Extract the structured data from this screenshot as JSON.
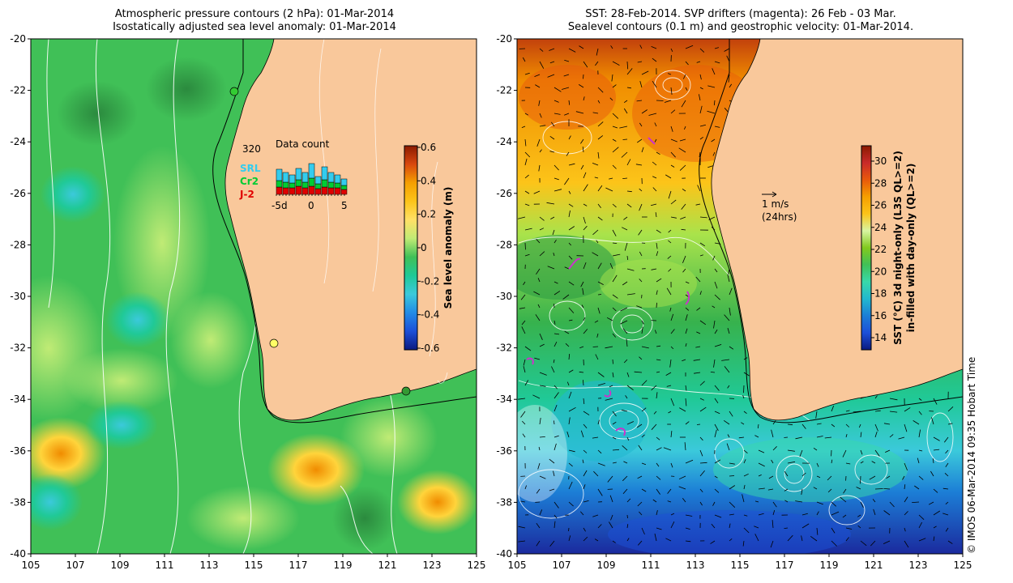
{
  "left_panel": {
    "title_line1": "Atmospheric pressure contours (2 hPa): 01-Mar-2014",
    "title_line2": "Isostatically adjusted sea level anomaly: 01-Mar-2014",
    "colorbar": {
      "label": "Sea level anomaly (m)",
      "ticks": [
        "0.6",
        "0.4",
        "0.2",
        "0",
        "-0.2",
        "-0.4",
        "-0.6"
      ],
      "colors": [
        "#8b1a00",
        "#d9480f",
        "#f59f00",
        "#fcc419",
        "#ffe066",
        "#c0eb75",
        "#40c057",
        "#20c997",
        "#3bc9db",
        "#228be6",
        "#1c4fd8",
        "#0b1a80"
      ]
    },
    "inset": {
      "title": "Data count",
      "max_label": "320",
      "x_ticks": [
        "-5d",
        "0",
        "5"
      ],
      "legend": [
        {
          "label": "SRL",
          "color": "#33ccee"
        },
        {
          "label": "Cr2",
          "color": "#00cc33"
        },
        {
          "label": "J-2",
          "color": "#e00000"
        }
      ]
    }
  },
  "right_panel": {
    "title_line1": "SST: 28-Feb-2014. SVP drifters (magenta): 26 Feb - 03 Mar.",
    "title_line2": "Sealevel contours (0.1 m) and geostrophic velocity: 01-Mar-2014.",
    "colorbar": {
      "label_line1": "SST (°C) 3d night-only (L3S QL>=2)",
      "label_line2": "in-filled with day-only (QL>=2)",
      "ticks": [
        "30",
        "28",
        "26",
        "24",
        "22",
        "20",
        "18",
        "16",
        "14"
      ],
      "colors": [
        "#8b1a00",
        "#c92a2a",
        "#e8590c",
        "#f59f00",
        "#fcc419",
        "#d8f5a2",
        "#82c91e",
        "#40c057",
        "#38d9a9",
        "#22b8cf",
        "#1c7ed6",
        "#1c4fd8",
        "#0b1a80"
      ]
    },
    "velocity_scale": {
      "label": "1 m/s",
      "sub_label": "(24hrs)"
    }
  },
  "axes": {
    "x_ticks": [
      "105",
      "107",
      "109",
      "111",
      "113",
      "115",
      "117",
      "119",
      "121",
      "123",
      "125"
    ],
    "y_ticks": [
      "-20",
      "-22",
      "-24",
      "-26",
      "-28",
      "-30",
      "-32",
      "-34",
      "-36",
      "-38",
      "-40"
    ]
  },
  "credit": "© IMOS 06-Mar-2014 09:35 Hobart Time",
  "colors": {
    "land": "#f9c89b",
    "coastline": "#000000",
    "contour": "#ffffff",
    "drifter": "#cc33cc"
  }
}
